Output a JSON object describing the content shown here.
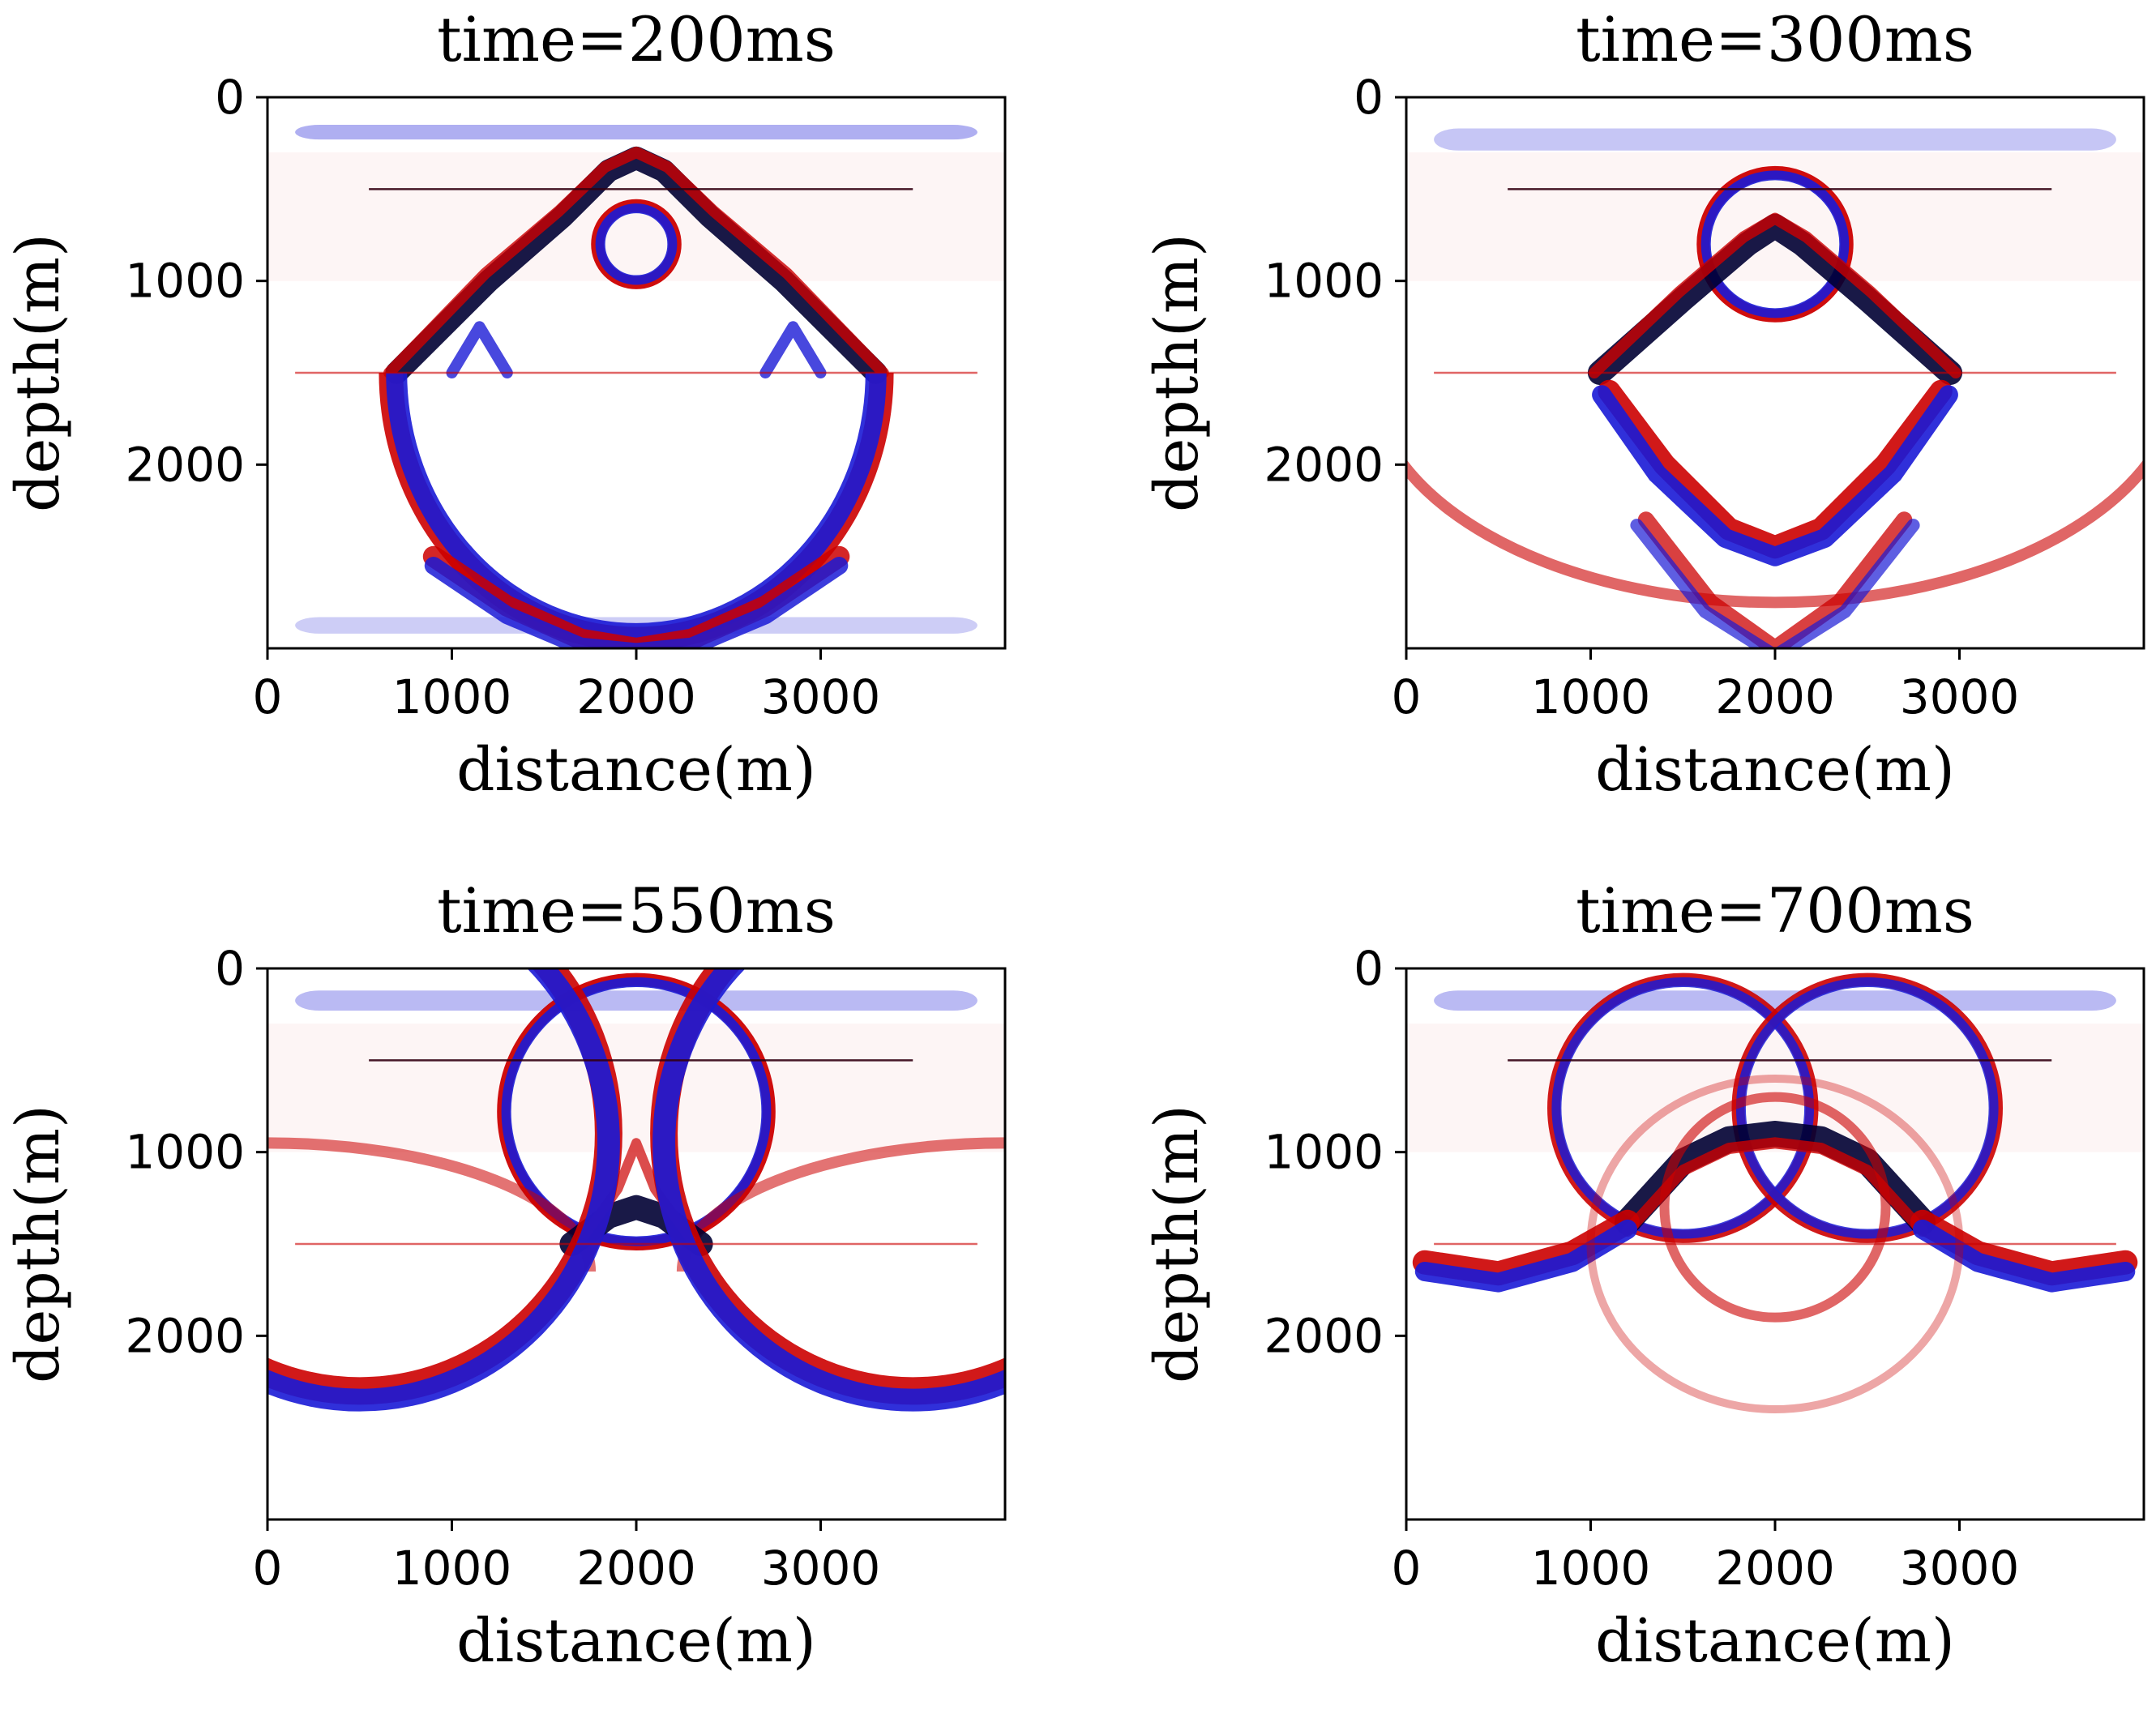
{
  "colors": {
    "positive": "#cc0000",
    "negative": "#1a1ad6",
    "background": "#ffffff",
    "axis": "#000000"
  },
  "chart_data": [
    {
      "type": "heatmap",
      "title": "time=200ms",
      "xlabel": "distance(m)",
      "ylabel": "depth(m)",
      "xlim": [
        0,
        4000
      ],
      "ylim": [
        3000,
        0
      ],
      "xticks": [
        0,
        1000,
        2000,
        3000
      ],
      "yticks": [
        0,
        1000,
        2000
      ],
      "colormap": "seismic (blue-white-red)",
      "horizontal_lines_depth": [
        500,
        1500
      ]
    },
    {
      "type": "heatmap",
      "title": "time=300ms",
      "xlabel": "distance(m)",
      "ylabel": "depth(m)",
      "xlim": [
        0,
        4000
      ],
      "ylim": [
        3000,
        0
      ],
      "xticks": [
        0,
        1000,
        2000,
        3000
      ],
      "yticks": [
        0,
        1000,
        2000
      ],
      "colormap": "seismic (blue-white-red)",
      "horizontal_lines_depth": [
        500,
        1500
      ]
    },
    {
      "type": "heatmap",
      "title": "time=550ms",
      "xlabel": "distance(m)",
      "ylabel": "depth(m)",
      "xlim": [
        0,
        4000
      ],
      "ylim": [
        3000,
        0
      ],
      "xticks": [
        0,
        1000,
        2000,
        3000
      ],
      "yticks": [
        0,
        1000,
        2000
      ],
      "colormap": "seismic (blue-white-red)",
      "horizontal_lines_depth": [
        500,
        1500
      ]
    },
    {
      "type": "heatmap",
      "title": "time=700ms",
      "xlabel": "distance(m)",
      "ylabel": "depth(m)",
      "xlim": [
        0,
        4000
      ],
      "ylim": [
        3000,
        0
      ],
      "xticks": [
        0,
        1000,
        2000,
        3000
      ],
      "yticks": [
        0,
        1000,
        2000
      ],
      "colormap": "seismic (blue-white-red)",
      "horizontal_lines_depth": [
        500,
        1500
      ]
    }
  ]
}
